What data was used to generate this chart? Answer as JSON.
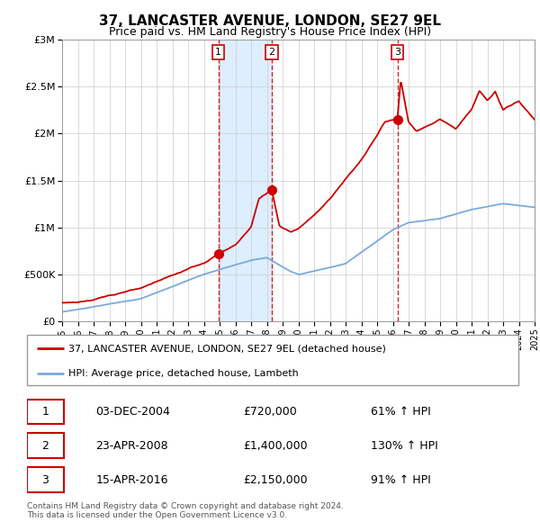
{
  "title": "37, LANCASTER AVENUE, LONDON, SE27 9EL",
  "subtitle": "Price paid vs. HM Land Registry's House Price Index (HPI)",
  "title_fontsize": 11,
  "subtitle_fontsize": 9,
  "red_label": "37, LANCASTER AVENUE, LONDON, SE27 9EL (detached house)",
  "blue_label": "HPI: Average price, detached house, Lambeth",
  "transactions": [
    {
      "num": 1,
      "date": "03-DEC-2004",
      "price": "£720,000",
      "hpi": "61% ↑ HPI",
      "year": 2004.92
    },
    {
      "num": 2,
      "date": "23-APR-2008",
      "price": "£1,400,000",
      "hpi": "130% ↑ HPI",
      "year": 2008.31
    },
    {
      "num": 3,
      "date": "15-APR-2016",
      "price": "£2,150,000",
      "hpi": "91% ↑ HPI",
      "year": 2016.29
    }
  ],
  "transaction_values": [
    720000,
    1400000,
    2150000
  ],
  "copyright": "Contains HM Land Registry data © Crown copyright and database right 2024.\nThis data is licensed under the Open Government Licence v3.0.",
  "ylim": [
    0,
    3000000
  ],
  "xlim_start": 1995,
  "xlim_end": 2025,
  "red_color": "#cc0000",
  "blue_color": "#7aaadd",
  "shaded_color": "#ddeeff",
  "grid_color": "#cccccc",
  "bg_color": "#ffffff",
  "yticks": [
    0,
    500000,
    1000000,
    1500000,
    2000000,
    2500000,
    3000000
  ],
  "ytick_labels": [
    "£0",
    "£500K",
    "£1M",
    "£1.5M",
    "£2M",
    "£2.5M",
    "£3M"
  ]
}
